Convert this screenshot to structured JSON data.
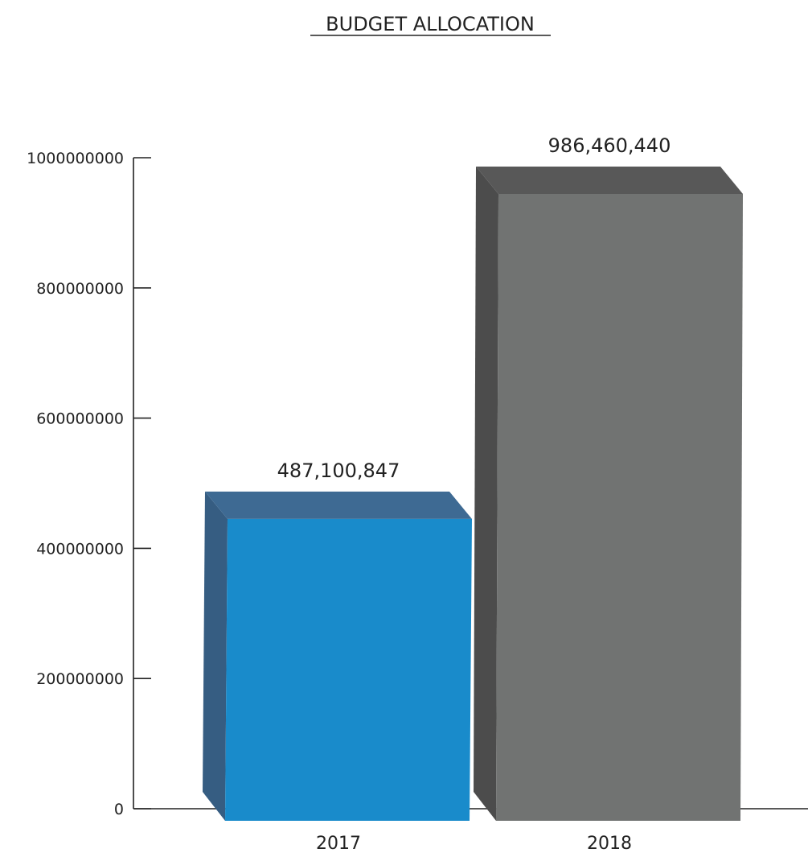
{
  "chart_data": {
    "type": "bar",
    "title": "BUDGET ALLOCATION",
    "xlabel": "",
    "ylabel": "",
    "categories": [
      "2017",
      "2018"
    ],
    "values": [
      487100847,
      986460440
    ],
    "value_labels": [
      "487,100,847",
      "986,460,440"
    ],
    "yticks": [
      0,
      200000000,
      400000000,
      600000000,
      800000000,
      1000000000
    ],
    "ylim": [
      0,
      1000000000
    ],
    "grid": false,
    "legend": "none",
    "style": "3d-box",
    "colors": {
      "2017": {
        "front": "#198bcb",
        "top": "#3e6a93",
        "side": "#365d82"
      },
      "2018": {
        "front": "#717372",
        "top": "#585858",
        "side": "#4c4c4c"
      }
    }
  }
}
